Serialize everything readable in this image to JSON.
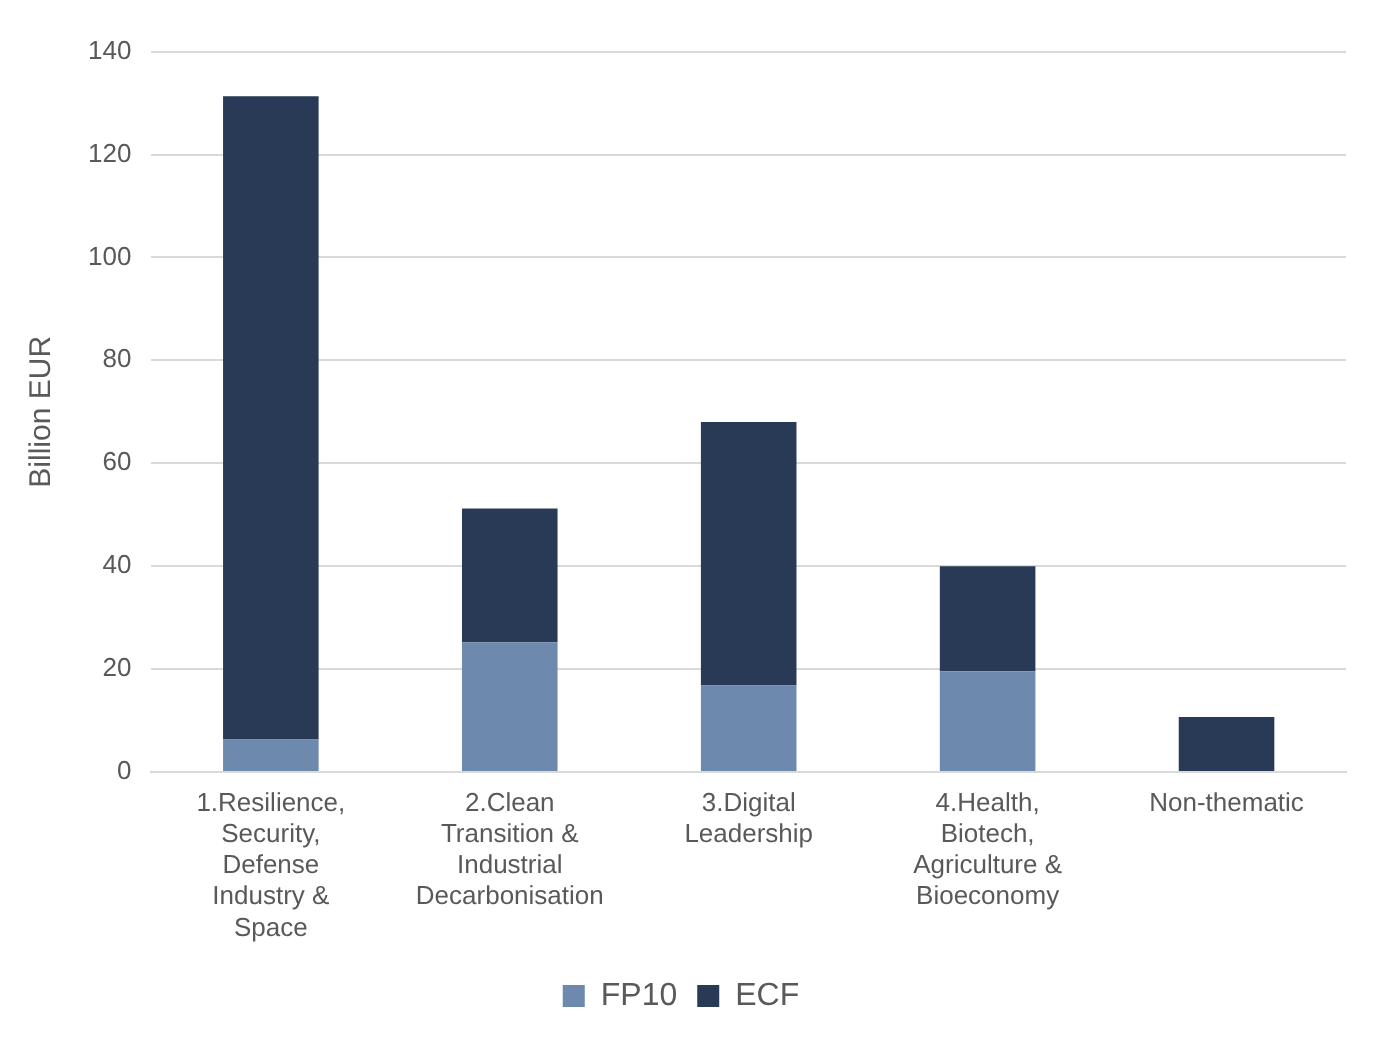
{
  "chart_data": {
    "type": "bar",
    "ylabel": "Billion EUR",
    "categories": [
      "1.Resilience, Security, Defense Industry & Space",
      "2.Clean Transition & Industrial Decarbonisation",
      "3.Digital Leadership",
      "4.Health, Biotech, Agriculture & Bioeconomy",
      "Non-thematic"
    ],
    "series": [
      {
        "name": "FP10",
        "color": "#6d89ae",
        "values": [
          6.3,
          25.2,
          16.8,
          19.6,
          0
        ]
      },
      {
        "name": "ECF",
        "color": "#283a55",
        "values": [
          125,
          26,
          51.2,
          20.4,
          10.7
        ]
      }
    ],
    "stacked": true,
    "ylim": [
      0,
      140
    ],
    "yticks": [
      0,
      20,
      40,
      60,
      80,
      100,
      120,
      140
    ],
    "grid": "y",
    "legend": "bottom"
  }
}
